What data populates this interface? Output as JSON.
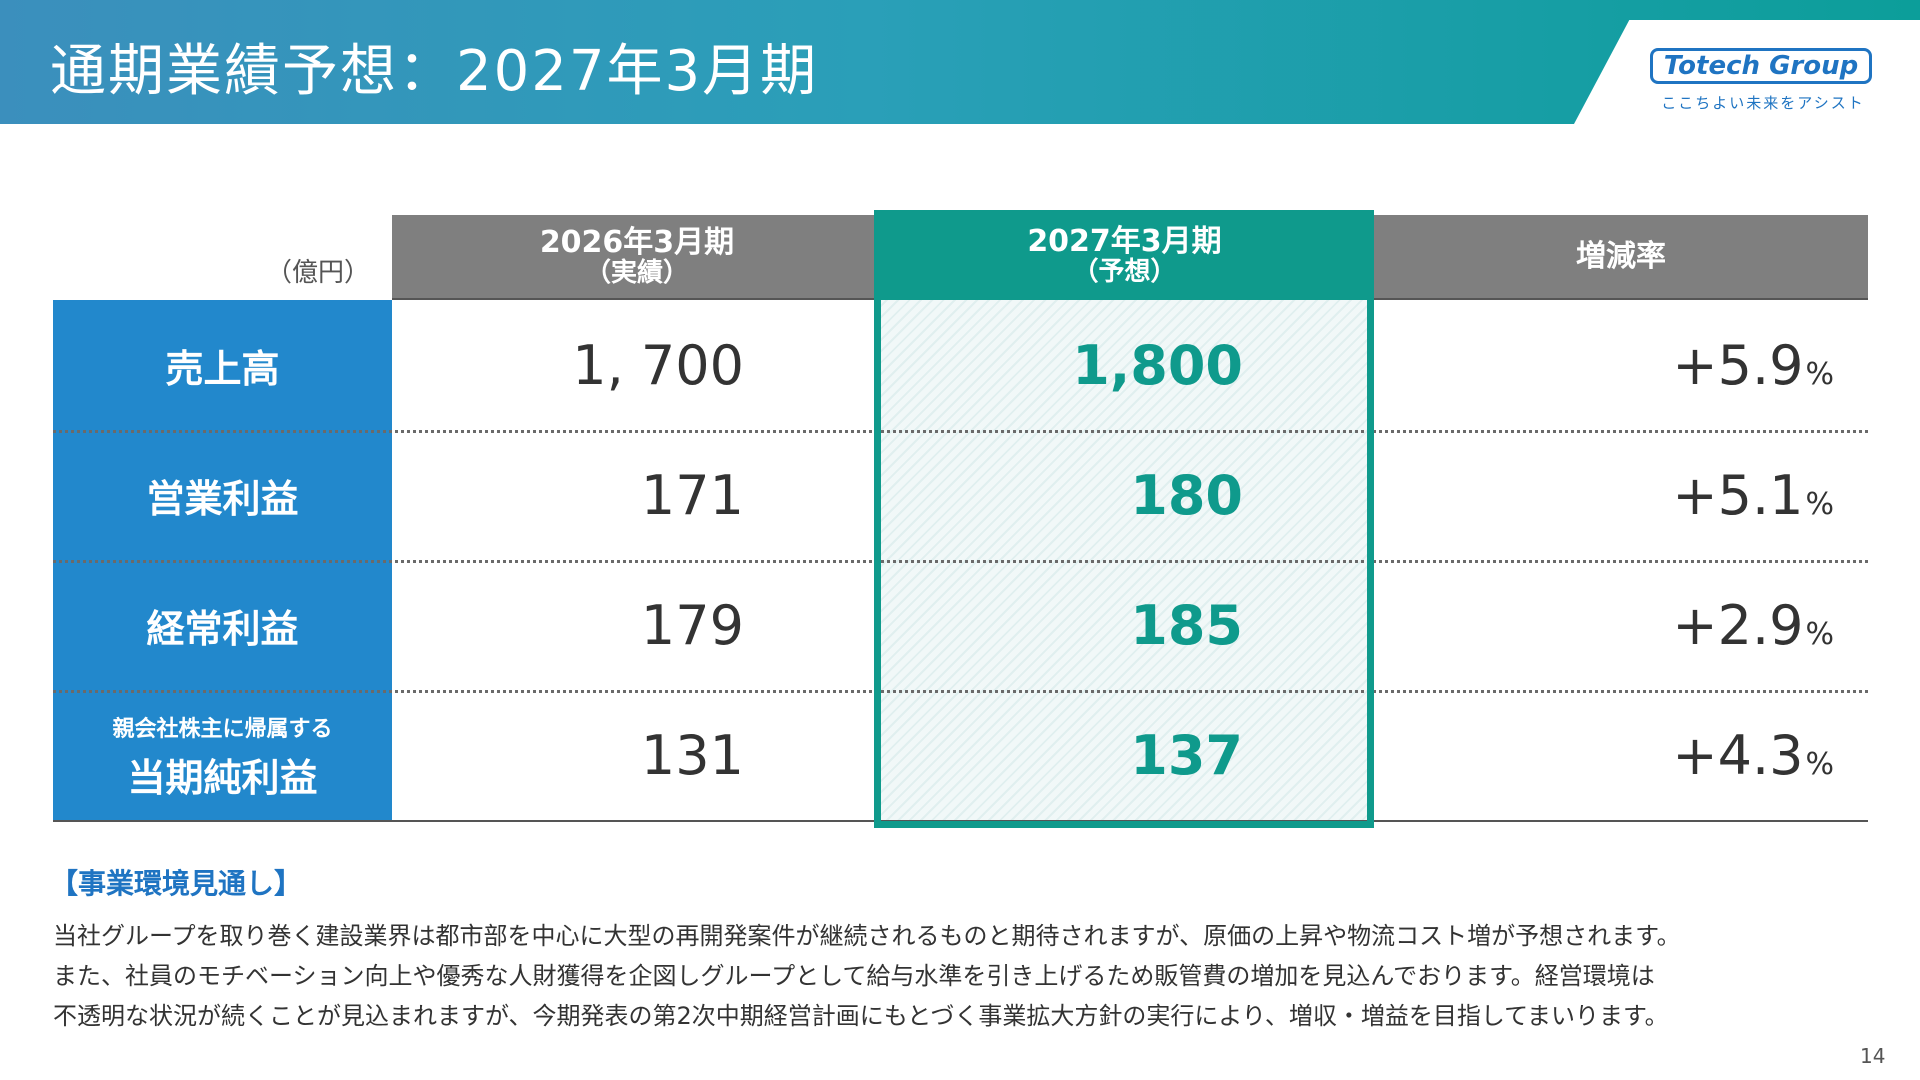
{
  "header": {
    "title": "通期業績予想：2027年3月期",
    "logo_text": "Totech Group",
    "logo_tagline": "ここちよい未来をアシスト"
  },
  "table": {
    "unit": "（億円）",
    "columns": [
      {
        "label": "2026年3月期",
        "sub": "（実績）"
      },
      {
        "label": "2027年3月期",
        "sub": "（予想）"
      },
      {
        "label": "増減率",
        "sub": ""
      }
    ],
    "rows": [
      {
        "label": "売上高",
        "label_small": "",
        "actual": "1, 700",
        "forecast": "1,800",
        "change": "+5.9",
        "unit": "%"
      },
      {
        "label": "営業利益",
        "label_small": "",
        "actual": "171",
        "forecast": "180",
        "change": "+5.1",
        "unit": "%"
      },
      {
        "label": "経常利益",
        "label_small": "",
        "actual": "179",
        "forecast": "185",
        "change": "+2.9",
        "unit": "%"
      },
      {
        "label": "当期純利益",
        "label_small": "親会社株主に帰属する",
        "actual": "131",
        "forecast": "137",
        "change": "+4.3",
        "unit": "%"
      }
    ]
  },
  "outlook": {
    "heading": "【事業環境見通し】",
    "lines": [
      "当社グループを取り巻く建設業界は都市部を中心に大型の再開発案件が継続されるものと期待されますが、原価の上昇や物流コスト増が予想されます。",
      "また、社員のモチベーション向上や優秀な人財獲得を企図しグループとして給与水準を引き上げるため販管費の増加を見込んでおります。経営環境は",
      "不透明な状況が続くことが見込まれますが、今期発表の第2次中期経営計画にもとづく事業拡大方針の実行により、増収・増益を目指してまいります。"
    ]
  },
  "page_number": "14",
  "colors": {
    "accent_teal": "#0f9a8c",
    "label_blue": "#2288cc",
    "logo_blue": "#1f74c2",
    "header_gray": "#7f7f7f"
  }
}
